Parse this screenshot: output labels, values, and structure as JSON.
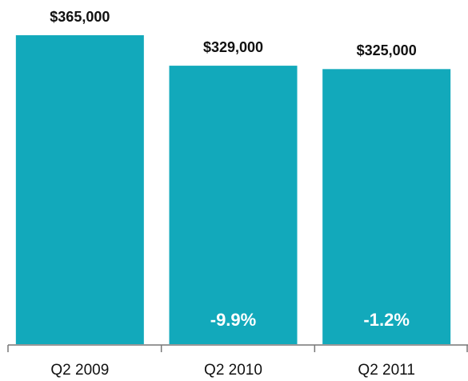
{
  "chart_data": {
    "type": "bar",
    "categories": [
      "Q2 2009",
      "Q2 2010",
      "Q2 2011"
    ],
    "values": [
      365000,
      329000,
      325000
    ],
    "value_labels": [
      "$365,000",
      "$329,000",
      "$325,000"
    ],
    "color": "#12a9bb",
    "ylim": [
      0,
      400000
    ],
    "change": {
      "values": [
        null,
        -9.9,
        -1.2
      ],
      "value_labels": [
        null,
        "-9.9%",
        "-1.2%"
      ]
    }
  }
}
